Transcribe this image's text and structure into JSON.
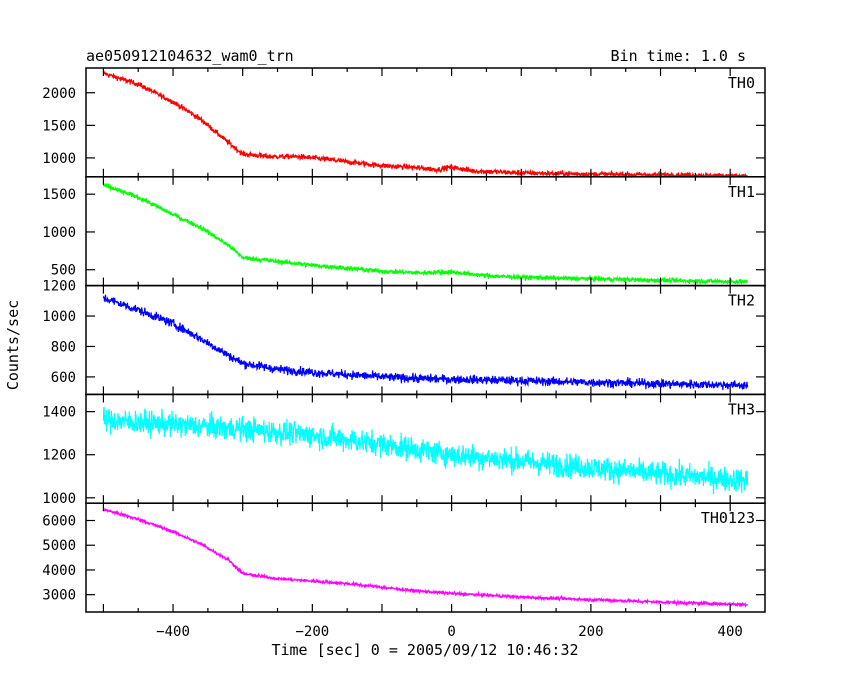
{
  "chart_data": {
    "type": "line",
    "title": "ae050912104632_wam0_trn",
    "subtitle": "Bin time: 1.0 s",
    "xlabel": "Time [sec] 0 = 2005/09/12 10:46:32",
    "ylabel": "Counts/sec",
    "xlim": [
      -525,
      450
    ],
    "x_ticks": [
      -400,
      -200,
      0,
      200,
      400
    ],
    "grid": false,
    "panels": [
      {
        "name": "TH0",
        "color": "#ff0000",
        "ylim": [
          710,
          2380
        ],
        "y_ticks": [
          1000,
          1500,
          2000
        ],
        "noise": 40,
        "points": [
          [
            -500,
            2300
          ],
          [
            -450,
            2130
          ],
          [
            -400,
            1860
          ],
          [
            -360,
            1590
          ],
          [
            -320,
            1230
          ],
          [
            -300,
            1060
          ],
          [
            -260,
            1020
          ],
          [
            -220,
            1020
          ],
          [
            -180,
            980
          ],
          [
            -150,
            940
          ],
          [
            -100,
            880
          ],
          [
            -60,
            860
          ],
          [
            -20,
            820
          ],
          [
            0,
            860
          ],
          [
            30,
            800
          ],
          [
            100,
            770
          ],
          [
            200,
            750
          ],
          [
            300,
            740
          ],
          [
            425,
            720
          ]
        ]
      },
      {
        "name": "TH1",
        "color": "#00ff00",
        "ylim": [
          290,
          1730
        ],
        "y_ticks": [
          500,
          1000,
          1500
        ],
        "noise": 30,
        "points": [
          [
            -500,
            1620
          ],
          [
            -450,
            1460
          ],
          [
            -400,
            1230
          ],
          [
            -360,
            1060
          ],
          [
            -320,
            820
          ],
          [
            -300,
            660
          ],
          [
            -250,
            610
          ],
          [
            -200,
            560
          ],
          [
            -150,
            520
          ],
          [
            -100,
            480
          ],
          [
            -50,
            460
          ],
          [
            0,
            470
          ],
          [
            50,
            420
          ],
          [
            100,
            400
          ],
          [
            200,
            380
          ],
          [
            300,
            360
          ],
          [
            425,
            340
          ]
        ]
      },
      {
        "name": "TH2",
        "color": "#0000ff",
        "ylim": [
          485,
          1200
        ],
        "y_ticks": [
          600,
          800,
          1000,
          1200
        ],
        "noise": 28,
        "points": [
          [
            -500,
            1120
          ],
          [
            -450,
            1040
          ],
          [
            -400,
            950
          ],
          [
            -360,
            850
          ],
          [
            -320,
            740
          ],
          [
            -300,
            690
          ],
          [
            -250,
            650
          ],
          [
            -200,
            630
          ],
          [
            -150,
            615
          ],
          [
            -100,
            600
          ],
          [
            -50,
            590
          ],
          [
            0,
            585
          ],
          [
            100,
            575
          ],
          [
            200,
            565
          ],
          [
            300,
            555
          ],
          [
            425,
            545
          ]
        ]
      },
      {
        "name": "TH3",
        "color": "#00ffff",
        "ylim": [
          975,
          1480
        ],
        "y_ticks": [
          1000,
          1200,
          1400
        ],
        "noise": 55,
        "points": [
          [
            -500,
            1360
          ],
          [
            -400,
            1340
          ],
          [
            -300,
            1320
          ],
          [
            -200,
            1290
          ],
          [
            -100,
            1250
          ],
          [
            0,
            1200
          ],
          [
            100,
            1170
          ],
          [
            200,
            1140
          ],
          [
            300,
            1110
          ],
          [
            425,
            1080
          ]
        ]
      },
      {
        "name": "TH0123",
        "color": "#ff00ff",
        "ylim": [
          2300,
          6700
        ],
        "y_ticks": [
          3000,
          4000,
          5000,
          6000
        ],
        "noise": 60,
        "points": [
          [
            -500,
            6450
          ],
          [
            -450,
            6050
          ],
          [
            -400,
            5550
          ],
          [
            -360,
            5050
          ],
          [
            -320,
            4400
          ],
          [
            -300,
            3850
          ],
          [
            -250,
            3650
          ],
          [
            -200,
            3550
          ],
          [
            -150,
            3450
          ],
          [
            -100,
            3300
          ],
          [
            -50,
            3150
          ],
          [
            0,
            3050
          ],
          [
            50,
            2980
          ],
          [
            100,
            2900
          ],
          [
            200,
            2800
          ],
          [
            300,
            2700
          ],
          [
            425,
            2600
          ]
        ]
      }
    ]
  }
}
